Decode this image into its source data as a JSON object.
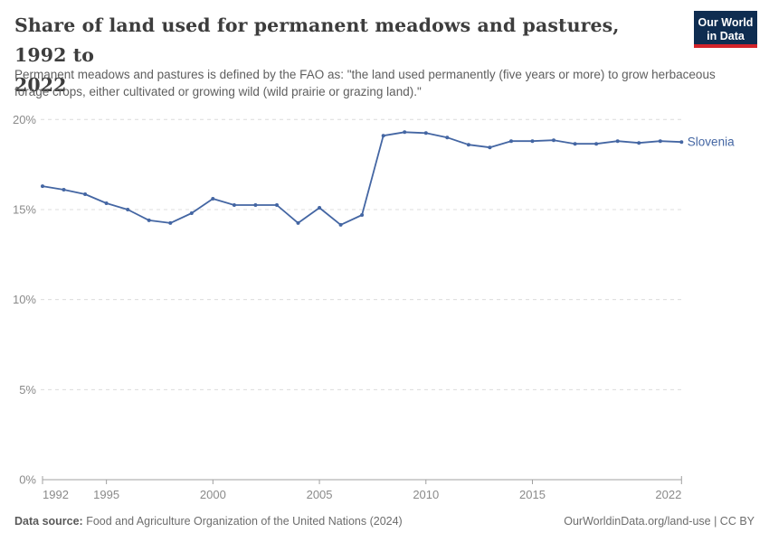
{
  "header": {
    "title_line1": "Share of land used for permanent meadows and pastures, 1992 to",
    "title_line2": "2022",
    "title_full": "Share of land used for permanent meadows and pastures, 1992 to 2022",
    "subtitle": "Permanent meadows and pastures is defined by the FAO as: \"the land used permanently (five years or more) to grow herbaceous forage crops, either cultivated or growing wild (wild prairie or grazing land).\"",
    "logo_line1": "Our World",
    "logo_line2": "in Data",
    "logo_bg_color": "#0f2d51",
    "logo_bar_color": "#d2232a"
  },
  "footer": {
    "datasource_label": "Data source:",
    "datasource_text": " Food and Agriculture Organization of the United Nations (2024)",
    "link_text": "OurWorldinData.org/land-use | CC BY"
  },
  "chart_data": {
    "type": "line",
    "title": "Share of land used for permanent meadows and pastures, 1992 to 2022",
    "xlabel": "",
    "ylabel": "",
    "xlim": [
      1992,
      2022
    ],
    "ylim": [
      0,
      20
    ],
    "grid": "horizontal-dashed",
    "legend_position": "end-of-line-label",
    "yticks": [
      {
        "value": 0,
        "label": "0%"
      },
      {
        "value": 5,
        "label": "5%"
      },
      {
        "value": 10,
        "label": "10%"
      },
      {
        "value": 15,
        "label": "15%"
      },
      {
        "value": 20,
        "label": "20%"
      }
    ],
    "xticks": [
      {
        "value": 1992,
        "label": "1992"
      },
      {
        "value": 1995,
        "label": "1995"
      },
      {
        "value": 2000,
        "label": "2000"
      },
      {
        "value": 2005,
        "label": "2005"
      },
      {
        "value": 2010,
        "label": "2010"
      },
      {
        "value": 2015,
        "label": "2015"
      },
      {
        "value": 2022,
        "label": "2022"
      }
    ],
    "series": [
      {
        "name": "Slovenia",
        "color": "#4466a3",
        "x": [
          1992,
          1993,
          1994,
          1995,
          1996,
          1997,
          1998,
          1999,
          2000,
          2001,
          2002,
          2003,
          2004,
          2005,
          2006,
          2007,
          2008,
          2009,
          2010,
          2011,
          2012,
          2013,
          2014,
          2015,
          2016,
          2017,
          2018,
          2019,
          2020,
          2021,
          2022
        ],
        "values": [
          16.3,
          16.1,
          15.85,
          15.35,
          15.0,
          14.4,
          14.25,
          14.8,
          15.6,
          15.25,
          15.25,
          15.25,
          14.25,
          15.1,
          14.15,
          14.7,
          19.1,
          19.3,
          19.25,
          19.0,
          18.6,
          18.45,
          18.8,
          18.8,
          18.85,
          18.65,
          18.65,
          18.8,
          18.7,
          18.8,
          18.75
        ]
      }
    ],
    "style": {
      "grid_color": "#dcdcdc",
      "axis_color": "#a0a0a0",
      "tick_label_color": "#8a8a8a"
    }
  }
}
